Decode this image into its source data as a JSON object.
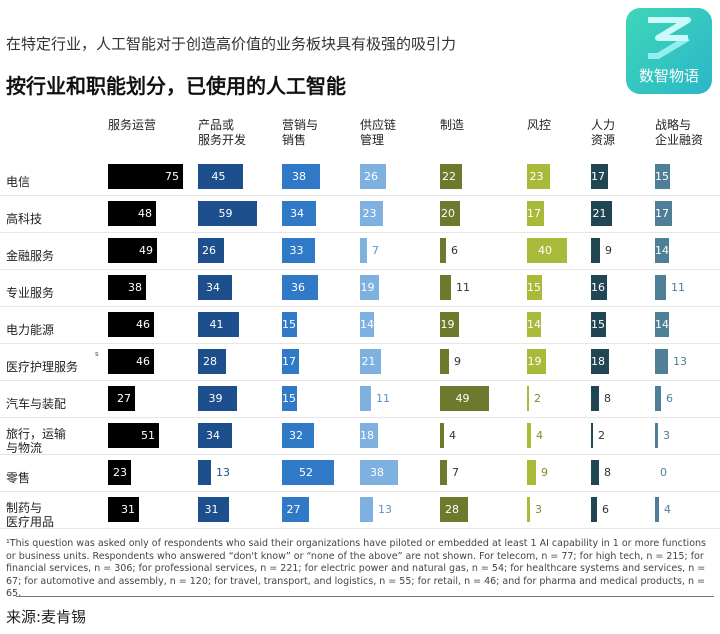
{
  "subtitle": "在特定行业，人工智能对于创造高价值的业务板块具有极强的吸引力",
  "logo_text": "数智物语",
  "chart_data": {
    "type": "bar",
    "title": "按行业和职能划分，已使用的人工智能",
    "columns": [
      "服务运营",
      "产品或\n服务开发",
      "营销与\n销售",
      "供应链\n管理",
      "制造",
      "风控",
      "人力\n资源",
      "战略与\n企业融资"
    ],
    "colors": [
      "#000000",
      "#1c4f8c",
      "#2f79c6",
      "#7eb0e0",
      "#6b7a2c",
      "#a9ba3b",
      "#1f4652",
      "#4e7f96"
    ],
    "text_colors": [
      "#000000",
      "#1c4f8c",
      "#2f79c6",
      "#5d93c9",
      "#333333",
      "#7e8c2a",
      "#333333",
      "#4e7f96"
    ],
    "rows": [
      {
        "label": "电信",
        "values": [
          75,
          45,
          38,
          26,
          22,
          23,
          17,
          15
        ]
      },
      {
        "label": "高科技",
        "values": [
          48,
          59,
          34,
          23,
          20,
          17,
          21,
          17
        ]
      },
      {
        "label": "金融服务",
        "values": [
          49,
          26,
          33,
          7,
          6,
          40,
          9,
          14
        ]
      },
      {
        "label": "专业服务",
        "values": [
          38,
          34,
          36,
          19,
          11,
          15,
          16,
          11
        ]
      },
      {
        "label": "电力能源",
        "values": [
          46,
          41,
          15,
          14,
          19,
          14,
          15,
          14
        ]
      },
      {
        "label": "医疗护理服务",
        "values": [
          46,
          28,
          17,
          21,
          9,
          19,
          18,
          13
        ]
      },
      {
        "label": "汽车与装配",
        "values": [
          27,
          39,
          15,
          11,
          49,
          2,
          8,
          6
        ]
      },
      {
        "label": "旅行，运输\n与物流",
        "values": [
          51,
          34,
          32,
          18,
          4,
          4,
          2,
          3
        ]
      },
      {
        "label": "零售",
        "values": [
          23,
          13,
          52,
          38,
          7,
          9,
          8,
          0
        ]
      },
      {
        "label": "制药与\n医疗用品",
        "values": [
          31,
          31,
          27,
          13,
          28,
          3,
          6,
          4
        ]
      }
    ],
    "unit": "%"
  },
  "footnote_marker": "s",
  "footnote": "¹This question was asked only of respondents who said their organizations have piloted or embedded at least 1 AI capability in 1 or more functions or business units. Respondents who answered “don't know” or “none of the above” are not shown. For telecom, n = 77; for high tech, n = 215; for financial services, n = 306; for professional services, n = 221; for electric power and natural gas, n = 54; for healthcare systems and services, n = 67; for automotive and assembly, n = 120; for travel, transport, and logistics, n = 55; for retail, n = 46; and for pharma and medical products, n = 65.",
  "source": "来源:麦肯锡"
}
